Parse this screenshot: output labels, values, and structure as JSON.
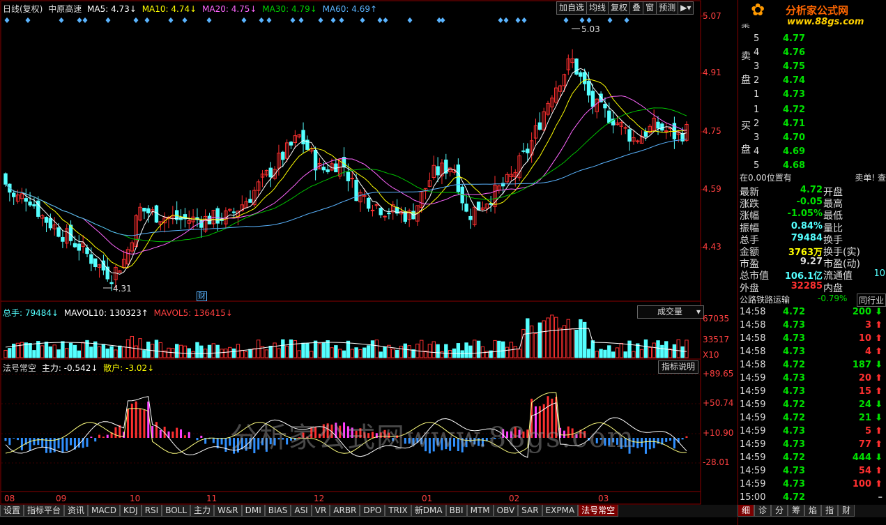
{
  "header": {
    "period": "日线(复权)",
    "stock_name": "中原高速",
    "ma5": "MA5: 4.73↓",
    "ma10": "MA10: 4.74↓",
    "ma20": "MA20: 4.75↓",
    "ma30": "MA30: 4.79↓",
    "ma60": "MA60: 4.69↑",
    "buttons": [
      "加自选",
      "均线",
      "复权",
      "叠",
      "窗",
      "预测",
      "▶︎▾"
    ]
  },
  "logo": {
    "text": "分析家公式网",
    "url": "www.88gs.com"
  },
  "price_axis": {
    "labels": [
      "5.07",
      "4.91",
      "4.75",
      "4.59",
      "4.43"
    ]
  },
  "price_marks": {
    "high": "5.03",
    "low": "4.31",
    "cai": "财"
  },
  "volume_panel": {
    "zongshou": "总手: 79484↓",
    "mavol10": "MAVOL10: 130323↑",
    "mavol5": "MAVOL5: 136415↓",
    "selector": "成交量",
    "axis_labels": [
      "67035",
      "33517",
      "X10"
    ]
  },
  "indicator_panel": {
    "name": "法号常空",
    "zhuli": "主力: -0.542↓",
    "sanhu": "散户: -3.02↓",
    "button": "指标说明",
    "axis_labels": [
      "+89.65",
      "+50.74",
      "+10.90",
      "-28.01"
    ]
  },
  "watermark": "分析家公式网www.88gs.com",
  "month_labels": [
    "08",
    "09",
    "10",
    "11",
    "12",
    "01",
    "02",
    "03"
  ],
  "bottom_tabs": [
    "设置",
    "指标平台",
    "资讯",
    "MACD",
    "KDJ",
    "RSI",
    "BOLL",
    "主力",
    "W&R",
    "DMI",
    "BIAS",
    "ASI",
    "VR",
    "ARBR",
    "DPO",
    "TRIX",
    "新DMA",
    "BBI",
    "MTM",
    "OBV",
    "SAR",
    "EXPMA",
    "法号常空"
  ],
  "right_tabs": [
    "细",
    "诊",
    "分",
    "筹",
    "焰",
    "指",
    "财"
  ],
  "order_book": {
    "ask_label": [
      "卖",
      "盘"
    ],
    "bid_label": [
      "买",
      "盘"
    ],
    "top_cut": "委",
    "asks": [
      {
        "level": "5",
        "price": "4.77"
      },
      {
        "level": "4",
        "price": "4.76"
      },
      {
        "level": "3",
        "price": "4.75"
      },
      {
        "level": "2",
        "price": "4.74"
      },
      {
        "level": "1",
        "price": "4.73"
      }
    ],
    "bids": [
      {
        "level": "1",
        "price": "4.72"
      },
      {
        "level": "2",
        "price": "4.71"
      },
      {
        "level": "3",
        "price": "4.70"
      },
      {
        "level": "4",
        "price": "4.69"
      },
      {
        "level": "5",
        "price": "4.68"
      }
    ]
  },
  "position_line": {
    "left": "在0.00位置有",
    "right": "卖单! 查"
  },
  "stats": [
    {
      "label": "最新",
      "value": "4.72",
      "label2": "开盘",
      "value2": ""
    },
    {
      "label": "涨跌",
      "value": "-0.05",
      "label2": "最高",
      "value2": ""
    },
    {
      "label": "涨幅",
      "value": "-1.05%",
      "label2": "最低",
      "value2": ""
    },
    {
      "label": "振幅",
      "value": "0.84%",
      "label2": "量比",
      "value2": ""
    },
    {
      "label": "总手",
      "value": "79484",
      "label2": "换手",
      "value2": ""
    },
    {
      "label": "金额",
      "value": "3763万",
      "label2": "换手(实)",
      "value2": ""
    },
    {
      "label": "市盈",
      "value": "9.27",
      "label2": "市盈(动)",
      "value2": ""
    },
    {
      "label": "总市值",
      "value": "106.1亿",
      "label2": "流通值",
      "value2": "10"
    },
    {
      "label": "外盘",
      "value": "32285",
      "label2": "内盘",
      "value2": ""
    }
  ],
  "sector": {
    "name": "公路铁路运输",
    "change": "-0.79%",
    "tab": "同行业"
  },
  "ticks": [
    {
      "time": "14:58",
      "price": "4.72",
      "vol": "200",
      "dir": "down"
    },
    {
      "time": "14:58",
      "price": "4.73",
      "vol": "3",
      "dir": "up"
    },
    {
      "time": "14:58",
      "price": "4.73",
      "vol": "10",
      "dir": "up"
    },
    {
      "time": "14:58",
      "price": "4.73",
      "vol": "4",
      "dir": "up"
    },
    {
      "time": "14:58",
      "price": "4.72",
      "vol": "187",
      "dir": "down"
    },
    {
      "time": "14:59",
      "price": "4.73",
      "vol": "20",
      "dir": "up"
    },
    {
      "time": "14:59",
      "price": "4.73",
      "vol": "15",
      "dir": "up"
    },
    {
      "time": "14:59",
      "price": "4.72",
      "vol": "24",
      "dir": "down"
    },
    {
      "time": "14:59",
      "price": "4.72",
      "vol": "21",
      "dir": "down"
    },
    {
      "time": "14:59",
      "price": "4.73",
      "vol": "5",
      "dir": "up"
    },
    {
      "time": "14:59",
      "price": "4.73",
      "vol": "77",
      "dir": "up"
    },
    {
      "time": "14:59",
      "price": "4.72",
      "vol": "444",
      "dir": "down"
    },
    {
      "time": "14:59",
      "price": "4.73",
      "vol": "54",
      "dir": "up"
    },
    {
      "time": "14:59",
      "price": "4.73",
      "vol": "100",
      "dir": "up"
    },
    {
      "time": "15:00",
      "price": "4.72",
      "vol": "",
      "dir": "none"
    }
  ],
  "colors": {
    "up": "#ff3030",
    "down": "#54ffff",
    "green": "#00e000",
    "ma5": "#ffffff",
    "ma10": "#ffff00",
    "ma20": "#ff66ff",
    "ma30": "#00c000",
    "ma60": "#5ab4ff",
    "grid": "#8b0000"
  }
}
